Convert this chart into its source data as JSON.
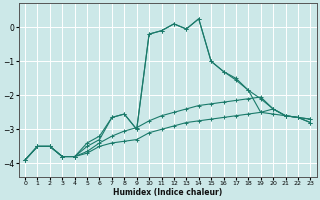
{
  "xlabel": "Humidex (Indice chaleur)",
  "background_color": "#cce8e8",
  "grid_color": "#ffffff",
  "line_color": "#1a7a6a",
  "xlim": [
    -0.5,
    23.5
  ],
  "ylim": [
    -4.4,
    0.7
  ],
  "yticks": [
    0,
    -1,
    -2,
    -3,
    -4
  ],
  "xticks": [
    0,
    1,
    2,
    3,
    4,
    5,
    6,
    7,
    8,
    9,
    10,
    11,
    12,
    13,
    14,
    15,
    16,
    17,
    18,
    19,
    20,
    21,
    22,
    23
  ],
  "series": [
    {
      "x": [
        0,
        1,
        2,
        3,
        4,
        5,
        6,
        7,
        8,
        9,
        10,
        11,
        12,
        13,
        14,
        15,
        16,
        17,
        18,
        19,
        20,
        21,
        22,
        23
      ],
      "y": [
        -3.9,
        -3.5,
        -3.5,
        -3.8,
        -3.8,
        -3.7,
        -3.5,
        -3.4,
        -3.35,
        -3.3,
        -3.1,
        -3.0,
        -2.9,
        -2.8,
        -2.75,
        -2.7,
        -2.65,
        -2.6,
        -2.55,
        -2.5,
        -2.55,
        -2.6,
        -2.65,
        -2.7
      ]
    },
    {
      "x": [
        0,
        1,
        2,
        3,
        4,
        5,
        6,
        7,
        8,
        9,
        10,
        11,
        12,
        13,
        14,
        15,
        16,
        17,
        18,
        19,
        20,
        21,
        22,
        23
      ],
      "y": [
        -3.9,
        -3.5,
        -3.5,
        -3.8,
        -3.8,
        -3.65,
        -3.4,
        -3.2,
        -3.05,
        -2.95,
        -2.75,
        -2.6,
        -2.5,
        -2.4,
        -2.3,
        -2.25,
        -2.2,
        -2.15,
        -2.1,
        -2.05,
        -2.4,
        -2.6,
        -2.65,
        -2.7
      ]
    },
    {
      "x": [
        0,
        1,
        2,
        3,
        4,
        5,
        6,
        7,
        8,
        9,
        10,
        11,
        12,
        13,
        14,
        15,
        16,
        17,
        18,
        19,
        20,
        21,
        22,
        23
      ],
      "y": [
        -3.9,
        -3.5,
        -3.5,
        -3.8,
        -3.8,
        -3.5,
        -3.3,
        -2.65,
        -2.55,
        -3.0,
        -0.2,
        -0.1,
        0.1,
        -0.05,
        0.25,
        -1.0,
        -1.3,
        -1.5,
        -1.85,
        -2.5,
        -2.4,
        -2.6,
        -2.65,
        -2.8
      ]
    },
    {
      "x": [
        0,
        1,
        2,
        3,
        4,
        5,
        6,
        7,
        8,
        9,
        10,
        11,
        12,
        13,
        14,
        15,
        16,
        17,
        18,
        19,
        20,
        21,
        22,
        23
      ],
      "y": [
        -3.9,
        -3.5,
        -3.5,
        -3.8,
        -3.8,
        -3.4,
        -3.2,
        -2.65,
        -2.55,
        -3.0,
        -0.2,
        -0.1,
        0.1,
        -0.05,
        0.25,
        -1.0,
        -1.3,
        -1.55,
        -1.85,
        -2.1,
        -2.4,
        -2.6,
        -2.65,
        -2.8
      ]
    }
  ]
}
